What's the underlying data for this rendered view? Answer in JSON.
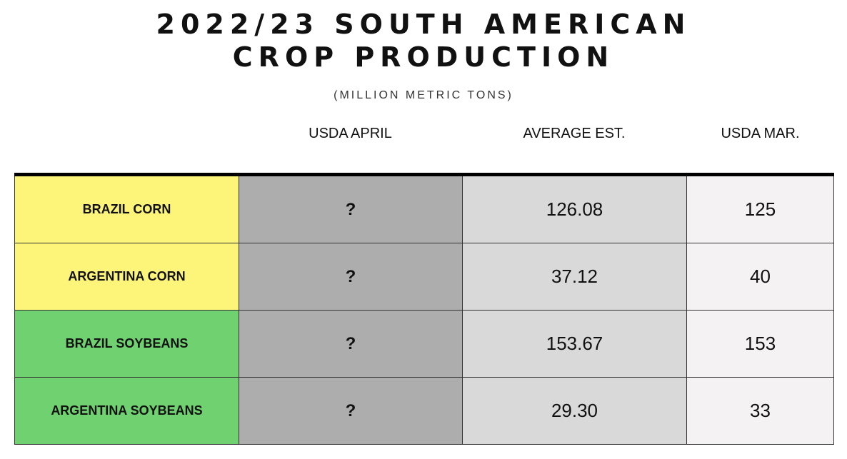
{
  "title_line1": "2022/23 SOUTH AMERICAN",
  "title_line2": "CROP PRODUCTION",
  "subtitle": "(MILLION METRIC TONS)",
  "chart_data": {
    "type": "table",
    "columns": [
      "",
      "USDA APRIL",
      "AVERAGE EST.",
      "USDA MAR."
    ],
    "rows": [
      {
        "label": "BRAZIL CORN",
        "usda_april": "?",
        "average_est": "126.08",
        "usda_mar": "125",
        "color": "#fdf57a"
      },
      {
        "label": "ARGENTINA CORN",
        "usda_april": "?",
        "average_est": "37.12",
        "usda_mar": "40",
        "color": "#fdf57a"
      },
      {
        "label": "BRAZIL SOYBEANS",
        "usda_april": "?",
        "average_est": "153.67",
        "usda_mar": "153",
        "color": "#6fd16f"
      },
      {
        "label": "ARGENTINA SOYBEANS",
        "usda_april": "?",
        "average_est": "29.30",
        "usda_mar": "33",
        "color": "#6fd16f"
      }
    ]
  }
}
